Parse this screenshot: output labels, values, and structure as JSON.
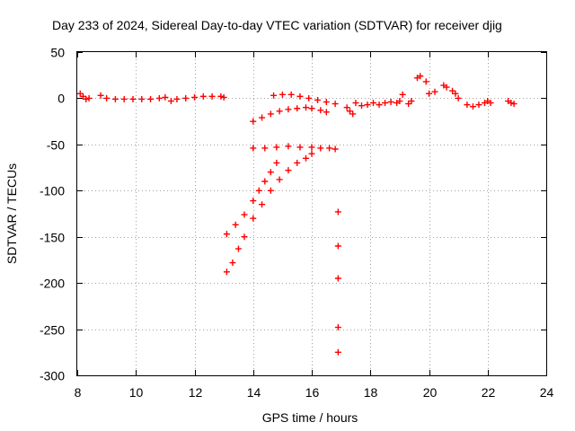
{
  "chart_data": {
    "type": "scatter",
    "title": "Day 233 of 2024, Sidereal Day-to-day VTEC variation (SDTVAR) for receiver djig",
    "xlabel": "GPS time / hours",
    "ylabel": "SDTVAR / TECUs",
    "xlim": [
      8,
      24
    ],
    "ylim": [
      -300,
      50
    ],
    "xticks": [
      "8",
      "10",
      "12",
      "14",
      "16",
      "18",
      "20",
      "22",
      "24"
    ],
    "yticks": [
      "50",
      "0",
      "-50",
      "-100",
      "-150",
      "-200",
      "-250",
      "-300"
    ],
    "xtick_values": [
      8,
      10,
      12,
      14,
      16,
      18,
      20,
      22,
      24
    ],
    "ytick_values": [
      50,
      0,
      -50,
      -100,
      -150,
      -200,
      -250,
      -300
    ],
    "grid": true,
    "marker": "+",
    "series": [
      {
        "color": "#ff0000",
        "points": [
          [
            8.1,
            5
          ],
          [
            8.2,
            2
          ],
          [
            8.3,
            -1
          ],
          [
            8.4,
            0
          ],
          [
            8.8,
            3
          ],
          [
            9.0,
            0
          ],
          [
            9.3,
            -1
          ],
          [
            9.6,
            -1
          ],
          [
            9.9,
            -1
          ],
          [
            10.2,
            -1
          ],
          [
            10.5,
            -1
          ],
          [
            10.8,
            0
          ],
          [
            11.0,
            1
          ],
          [
            11.2,
            -3
          ],
          [
            11.4,
            -1
          ],
          [
            11.7,
            0
          ],
          [
            12.0,
            1
          ],
          [
            12.3,
            2
          ],
          [
            12.6,
            2
          ],
          [
            12.9,
            2
          ],
          [
            13.0,
            1
          ],
          [
            14.7,
            3
          ],
          [
            15.0,
            4
          ],
          [
            15.3,
            4
          ],
          [
            15.6,
            2
          ],
          [
            15.9,
            0
          ],
          [
            16.2,
            -2
          ],
          [
            16.5,
            -4
          ],
          [
            16.8,
            -6
          ],
          [
            14.0,
            -25
          ],
          [
            14.3,
            -21
          ],
          [
            14.6,
            -17
          ],
          [
            14.9,
            -14
          ],
          [
            15.2,
            -12
          ],
          [
            15.5,
            -11
          ],
          [
            15.8,
            -10
          ],
          [
            16.0,
            -11
          ],
          [
            16.3,
            -13
          ],
          [
            16.5,
            -15
          ],
          [
            14.0,
            -54
          ],
          [
            14.4,
            -54
          ],
          [
            14.8,
            -53
          ],
          [
            15.2,
            -52
          ],
          [
            15.6,
            -53
          ],
          [
            16.0,
            -53
          ],
          [
            16.3,
            -54
          ],
          [
            16.6,
            -54
          ],
          [
            16.8,
            -55
          ],
          [
            13.1,
            -147
          ],
          [
            13.4,
            -137
          ],
          [
            13.7,
            -126
          ],
          [
            14.0,
            -111
          ],
          [
            14.2,
            -100
          ],
          [
            14.4,
            -90
          ],
          [
            14.6,
            -80
          ],
          [
            14.8,
            -70
          ],
          [
            13.1,
            -188
          ],
          [
            13.3,
            -178
          ],
          [
            13.5,
            -163
          ],
          [
            13.7,
            -150
          ],
          [
            14.0,
            -130
          ],
          [
            14.3,
            -115
          ],
          [
            14.6,
            -100
          ],
          [
            14.9,
            -88
          ],
          [
            15.2,
            -78
          ],
          [
            15.5,
            -70
          ],
          [
            15.8,
            -65
          ],
          [
            16.0,
            -60
          ],
          [
            16.9,
            -123
          ],
          [
            16.9,
            -160
          ],
          [
            16.9,
            -195
          ],
          [
            16.9,
            -248
          ],
          [
            16.9,
            -275
          ],
          [
            17.2,
            -10
          ],
          [
            17.3,
            -14
          ],
          [
            17.4,
            -17
          ],
          [
            17.5,
            -5
          ],
          [
            17.7,
            -8
          ],
          [
            17.9,
            -7
          ],
          [
            18.1,
            -5
          ],
          [
            18.3,
            -7
          ],
          [
            18.5,
            -5
          ],
          [
            18.7,
            -4
          ],
          [
            18.9,
            -5
          ],
          [
            19.0,
            -3
          ],
          [
            19.1,
            4
          ],
          [
            19.3,
            -6
          ],
          [
            19.4,
            -3
          ],
          [
            19.6,
            22
          ],
          [
            19.7,
            24
          ],
          [
            19.9,
            18
          ],
          [
            20.0,
            5
          ],
          [
            20.2,
            7
          ],
          [
            20.5,
            14
          ],
          [
            20.6,
            12
          ],
          [
            20.8,
            8
          ],
          [
            20.9,
            5
          ],
          [
            21.0,
            0
          ],
          [
            21.3,
            -7
          ],
          [
            21.5,
            -9
          ],
          [
            21.7,
            -7
          ],
          [
            21.9,
            -5
          ],
          [
            22.0,
            -3
          ],
          [
            22.1,
            -5
          ],
          [
            22.7,
            -3
          ],
          [
            22.8,
            -5
          ],
          [
            22.9,
            -6
          ]
        ]
      }
    ]
  }
}
